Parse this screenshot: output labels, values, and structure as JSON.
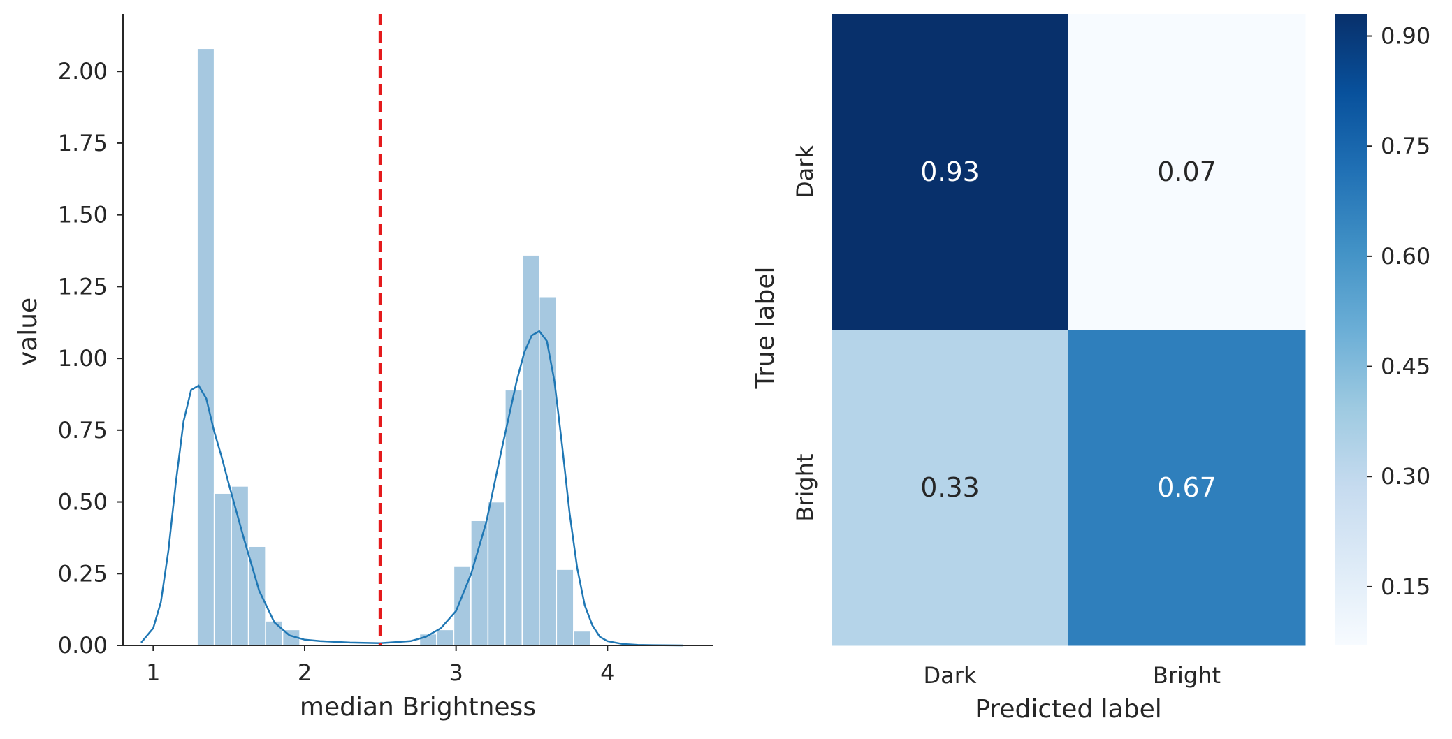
{
  "chart_data": [
    {
      "type": "histogram",
      "xlabel": "median Brightness",
      "ylabel": "value",
      "xlim": [
        0.8,
        4.7
      ],
      "ylim": [
        0,
        2.2
      ],
      "x_ticks": [
        "1",
        "2",
        "3",
        "4"
      ],
      "y_ticks": [
        "0.00",
        "0.25",
        "0.50",
        "0.75",
        "1.00",
        "1.25",
        "1.50",
        "1.75",
        "2.00"
      ],
      "bin_width": 0.113,
      "bins": [
        {
          "x0": 1.29,
          "value": 2.08
        },
        {
          "x0": 1.403,
          "value": 0.53
        },
        {
          "x0": 1.516,
          "value": 0.555
        },
        {
          "x0": 1.629,
          "value": 0.345
        },
        {
          "x0": 1.742,
          "value": 0.085
        },
        {
          "x0": 1.855,
          "value": 0.055
        },
        {
          "x0": 2.759,
          "value": 0.04
        },
        {
          "x0": 2.872,
          "value": 0.055
        },
        {
          "x0": 2.985,
          "value": 0.275
        },
        {
          "x0": 3.098,
          "value": 0.435
        },
        {
          "x0": 3.211,
          "value": 0.5
        },
        {
          "x0": 3.324,
          "value": 0.89
        },
        {
          "x0": 3.437,
          "value": 1.36
        },
        {
          "x0": 3.55,
          "value": 1.215
        },
        {
          "x0": 3.663,
          "value": 0.265
        },
        {
          "x0": 3.776,
          "value": 0.05
        }
      ],
      "kde": {
        "x": [
          0.92,
          1.0,
          1.05,
          1.1,
          1.15,
          1.2,
          1.25,
          1.3,
          1.35,
          1.4,
          1.45,
          1.5,
          1.6,
          1.7,
          1.8,
          1.9,
          2.0,
          2.1,
          2.3,
          2.5,
          2.7,
          2.8,
          2.9,
          3.0,
          3.1,
          3.2,
          3.3,
          3.4,
          3.45,
          3.5,
          3.55,
          3.6,
          3.65,
          3.7,
          3.75,
          3.8,
          3.85,
          3.9,
          3.95,
          4.0,
          4.1,
          4.2,
          4.3,
          4.5
        ],
        "y": [
          0.01,
          0.06,
          0.15,
          0.33,
          0.57,
          0.78,
          0.89,
          0.905,
          0.86,
          0.75,
          0.66,
          0.56,
          0.37,
          0.19,
          0.08,
          0.035,
          0.02,
          0.015,
          0.01,
          0.008,
          0.015,
          0.03,
          0.06,
          0.12,
          0.25,
          0.43,
          0.68,
          0.92,
          1.02,
          1.08,
          1.095,
          1.06,
          0.92,
          0.7,
          0.46,
          0.27,
          0.14,
          0.07,
          0.03,
          0.015,
          0.005,
          0.002,
          0.001,
          0.0
        ],
        "color": "#1f77b4"
      },
      "vline": {
        "x": 2.5,
        "color": "#e41a1c",
        "style": "dashed"
      },
      "hist_color": "#a6c8e0"
    },
    {
      "type": "heatmap",
      "xlabel": "Predicted label",
      "ylabel": "True label",
      "x_categories": [
        "Dark",
        "Bright"
      ],
      "y_categories": [
        "Dark",
        "Bright"
      ],
      "values": [
        [
          0.93,
          0.07
        ],
        [
          0.33,
          0.67
        ]
      ],
      "cell_labels": [
        [
          "0.93",
          "0.07"
        ],
        [
          "0.33",
          "0.67"
        ]
      ],
      "colormap": "Blues",
      "vmin": 0.07,
      "vmax": 0.93,
      "colorbar_ticks": [
        "0.15",
        "0.30",
        "0.45",
        "0.60",
        "0.75",
        "0.90"
      ]
    }
  ]
}
